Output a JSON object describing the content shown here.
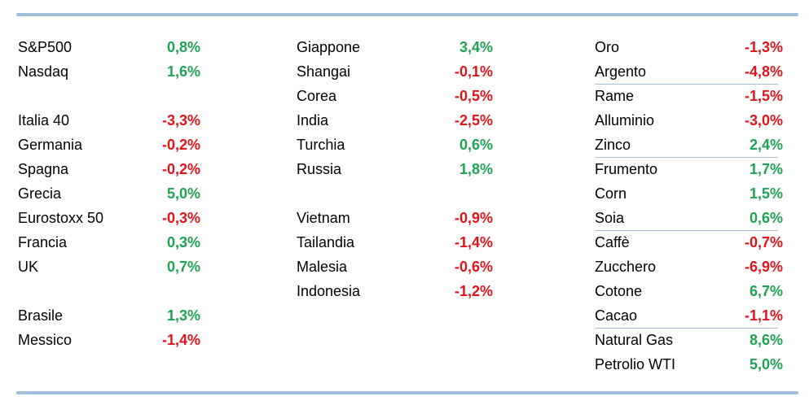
{
  "colors": {
    "positive": "#1fa254",
    "negative": "#e0141c",
    "rule": "#9fbfdc"
  },
  "columns": [
    {
      "rows": [
        {
          "name": "S&P500",
          "value": "0,8%"
        },
        {
          "name": "Nasdaq",
          "value": "1,6%"
        },
        null,
        {
          "name": "Italia 40",
          "value": "-3,3%"
        },
        {
          "name": "Germania",
          "value": "-0,2%"
        },
        {
          "name": "Spagna",
          "value": "-0,2%"
        },
        {
          "name": "Grecia",
          "value": "5,0%"
        },
        {
          "name": "Eurostoxx 50",
          "value": "-0,3%"
        },
        {
          "name": "Francia",
          "value": "0,3%"
        },
        {
          "name": "UK",
          "value": "0,7%"
        },
        null,
        {
          "name": "Brasile",
          "value": "1,3%"
        },
        {
          "name": "Messico",
          "value": "-1,4%"
        }
      ]
    },
    {
      "rows": [
        {
          "name": "Giappone",
          "value": "3,4%"
        },
        {
          "name": "Shangai",
          "value": "-0,1%"
        },
        {
          "name": "Corea",
          "value": "-0,5%"
        },
        {
          "name": "India",
          "value": "-2,5%"
        },
        {
          "name": "Turchia",
          "value": "0,6%"
        },
        {
          "name": "Russia",
          "value": "1,8%"
        },
        null,
        {
          "name": "Vietnam",
          "value": "-0,9%"
        },
        {
          "name": "Tailandia",
          "value": "-1,4%"
        },
        {
          "name": "Malesia",
          "value": "-0,6%"
        },
        {
          "name": "Indonesia",
          "value": "-1,2%"
        }
      ]
    },
    {
      "rows": [
        {
          "name": "Oro",
          "value": "-1,3%"
        },
        {
          "name": "Argento",
          "value": "-4,8%"
        },
        {
          "name": "Rame",
          "value": "-1,5%"
        },
        {
          "name": "Alluminio",
          "value": "-3,0%"
        },
        {
          "name": "Zinco",
          "value": "2,4%"
        },
        {
          "name": "Frumento",
          "value": "1,7%"
        },
        {
          "name": "Corn",
          "value": "1,5%"
        },
        {
          "name": "Soia",
          "value": "0,6%"
        },
        {
          "name": "Caffè",
          "value": "-0,7%"
        },
        {
          "name": "Zucchero",
          "value": "-6,9%"
        },
        {
          "name": "Cotone",
          "value": "6,7%"
        },
        {
          "name": "Cacao",
          "value": "-1,1%"
        },
        {
          "name": "Natural Gas",
          "value": "8,6%"
        },
        {
          "name": "Petrolio WTI",
          "value": "5,0%"
        }
      ],
      "separators_after": [
        1,
        4,
        7,
        11
      ]
    }
  ]
}
